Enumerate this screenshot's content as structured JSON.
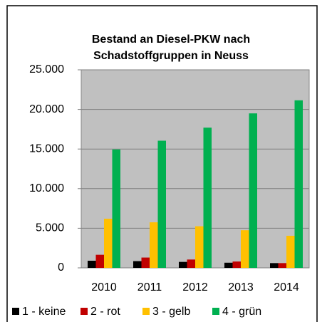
{
  "chart_data": {
    "type": "bar",
    "title": [
      "Bestand an Diesel-PKW nach",
      "Schadstoffgruppen in Neuss"
    ],
    "categories": [
      "2010",
      "2011",
      "2012",
      "2013",
      "2014"
    ],
    "series": [
      {
        "name": "1 - keine",
        "color": "#000000",
        "values": [
          900,
          850,
          750,
          650,
          600
        ]
      },
      {
        "name": "2 - rot",
        "color": "#c00000",
        "values": [
          1650,
          1300,
          1050,
          800,
          600
        ]
      },
      {
        "name": "3 - gelb",
        "color": "#ffc000",
        "values": [
          6200,
          5750,
          5250,
          4750,
          4050
        ]
      },
      {
        "name": "4 - grün",
        "color": "#00b050",
        "values": [
          14950,
          16050,
          17700,
          19500,
          21150
        ]
      }
    ],
    "ylim": [
      0,
      25000
    ],
    "yticks": [
      0,
      {
        "value": 5000,
        "label": "5.000"
      },
      {
        "value": 10000,
        "label": "10.000"
      },
      {
        "value": 15000,
        "label": "15.000"
      },
      {
        "value": 20000,
        "label": "20.000"
      },
      {
        "value": 25000,
        "label": "25.000"
      }
    ],
    "grid": true,
    "legend": "bottom"
  }
}
